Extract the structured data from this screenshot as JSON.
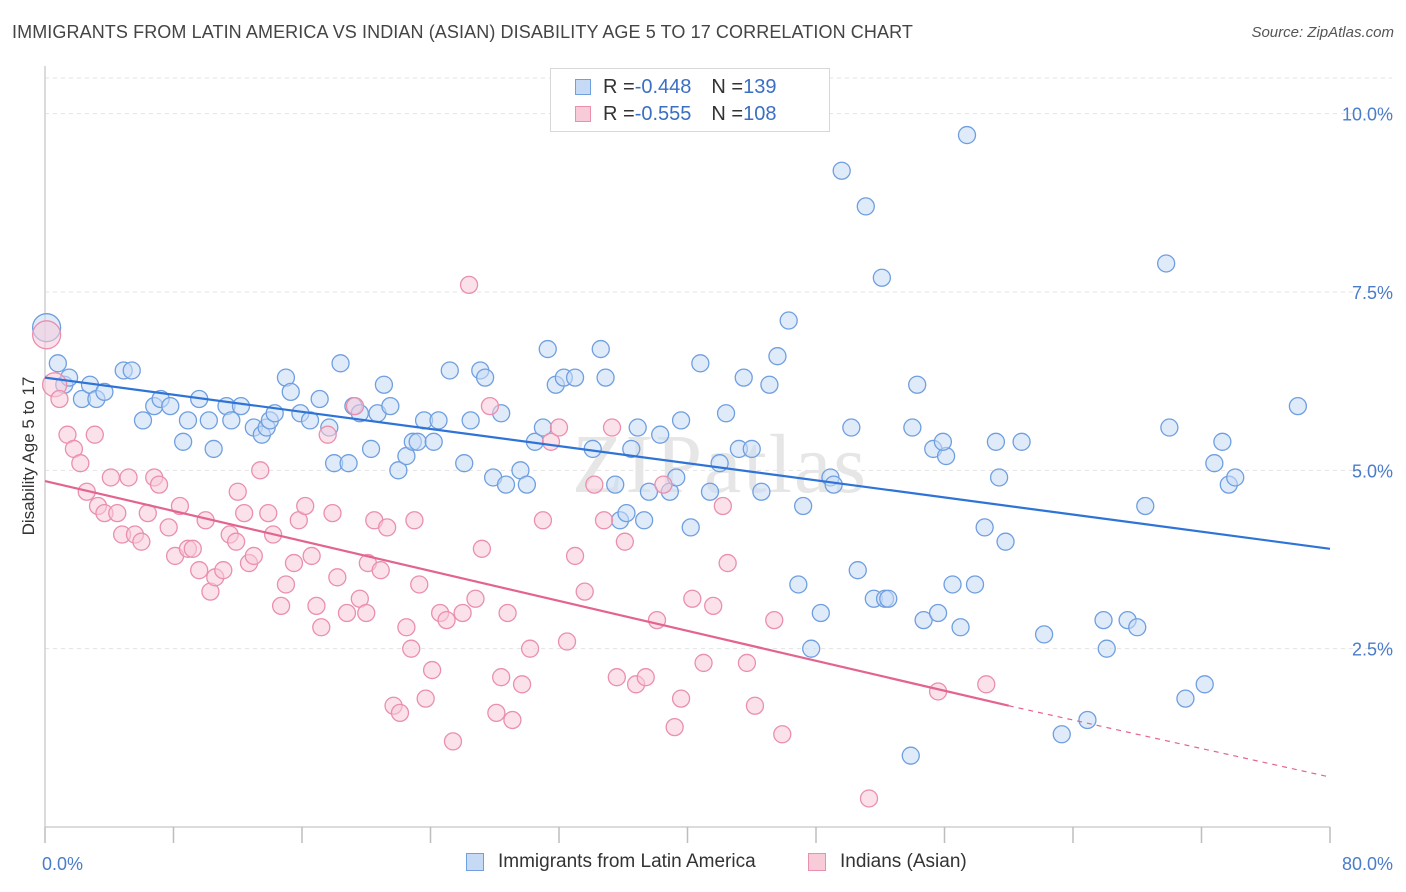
{
  "title": "IMMIGRANTS FROM LATIN AMERICA VS INDIAN (ASIAN) DISABILITY AGE 5 TO 17 CORRELATION CHART",
  "source": "Source: ZipAtlas.com",
  "watermark": "ZIPatlas",
  "colors": {
    "blue": "#6f9fe0",
    "blue_fill": "#c7daf5",
    "blue_line": "#2e74d6",
    "pink": "#ea8fae",
    "pink_fill": "#f8cbd9",
    "pink_line": "#e2648f",
    "tick_text": "#4a7cc9",
    "grid": "#e3e3e3"
  },
  "legend": {
    "rows": [
      {
        "r_label": "R = ",
        "r_value": "-0.448",
        "n_label": "N = ",
        "n_value": "139"
      },
      {
        "r_label": "R = ",
        "r_value": "-0.555",
        "n_label": "N = ",
        "n_value": "108"
      }
    ]
  },
  "chart_data": {
    "type": "scatter",
    "title": "IMMIGRANTS FROM LATIN AMERICA VS INDIAN (ASIAN) DISABILITY AGE 5 TO 17 CORRELATION CHART",
    "xlabel": "",
    "ylabel": "Disability Age 5 to 17",
    "xlim": [
      0,
      80
    ],
    "ylim": [
      0,
      10.5
    ],
    "x_tick_labels": [
      "0.0%",
      "80.0%"
    ],
    "y_ticks": [
      2.5,
      5.0,
      7.5,
      10.0
    ],
    "y_tick_labels": [
      "2.5%",
      "5.0%",
      "7.5%",
      "10.0%"
    ],
    "grid": true,
    "legend_position": "top-center",
    "series": [
      {
        "name": "Immigrants from Latin America",
        "color": "#6f9fe0",
        "R": -0.448,
        "N": 139,
        "trend": {
          "x": [
            0,
            80
          ],
          "y": [
            6.3,
            3.9
          ]
        },
        "points": [
          [
            0.1,
            7.0
          ],
          [
            0.8,
            6.5
          ],
          [
            1.2,
            6.2
          ],
          [
            1.5,
            6.3
          ],
          [
            2.3,
            6.0
          ],
          [
            2.8,
            6.2
          ],
          [
            3.2,
            6.0
          ],
          [
            3.7,
            6.1
          ],
          [
            4.9,
            6.4
          ],
          [
            5.4,
            6.4
          ],
          [
            6.1,
            5.7
          ],
          [
            6.8,
            5.9
          ],
          [
            7.2,
            6.0
          ],
          [
            7.8,
            5.9
          ],
          [
            8.6,
            5.4
          ],
          [
            8.9,
            5.7
          ],
          [
            9.6,
            6.0
          ],
          [
            10.2,
            5.7
          ],
          [
            10.5,
            5.3
          ],
          [
            11.3,
            5.9
          ],
          [
            11.6,
            5.7
          ],
          [
            12.2,
            5.9
          ],
          [
            13.0,
            5.6
          ],
          [
            13.5,
            5.5
          ],
          [
            13.8,
            5.6
          ],
          [
            14.0,
            5.7
          ],
          [
            14.3,
            5.8
          ],
          [
            15.0,
            6.3
          ],
          [
            15.3,
            6.1
          ],
          [
            15.9,
            5.8
          ],
          [
            16.5,
            5.7
          ],
          [
            17.1,
            6.0
          ],
          [
            17.7,
            5.6
          ],
          [
            18.0,
            5.1
          ],
          [
            18.4,
            6.5
          ],
          [
            18.9,
            5.1
          ],
          [
            19.2,
            5.9
          ],
          [
            19.6,
            5.8
          ],
          [
            20.3,
            5.3
          ],
          [
            20.7,
            5.8
          ],
          [
            21.1,
            6.2
          ],
          [
            21.5,
            5.9
          ],
          [
            22.0,
            5.0
          ],
          [
            22.5,
            5.2
          ],
          [
            22.9,
            5.4
          ],
          [
            23.2,
            5.4
          ],
          [
            23.6,
            5.7
          ],
          [
            24.2,
            5.4
          ],
          [
            24.5,
            5.7
          ],
          [
            25.2,
            6.4
          ],
          [
            26.1,
            5.1
          ],
          [
            26.5,
            5.7
          ],
          [
            27.1,
            6.4
          ],
          [
            27.4,
            6.3
          ],
          [
            27.9,
            4.9
          ],
          [
            28.4,
            5.8
          ],
          [
            28.7,
            4.8
          ],
          [
            29.6,
            5.0
          ],
          [
            30.0,
            4.8
          ],
          [
            30.5,
            5.4
          ],
          [
            31.0,
            5.6
          ],
          [
            31.3,
            6.7
          ],
          [
            31.8,
            6.2
          ],
          [
            32.3,
            6.3
          ],
          [
            33.0,
            6.3
          ],
          [
            34.1,
            5.3
          ],
          [
            34.6,
            6.7
          ],
          [
            34.9,
            6.3
          ],
          [
            35.5,
            4.8
          ],
          [
            35.8,
            4.3
          ],
          [
            36.2,
            4.4
          ],
          [
            36.5,
            5.3
          ],
          [
            36.9,
            5.6
          ],
          [
            37.3,
            4.3
          ],
          [
            37.6,
            4.7
          ],
          [
            38.3,
            5.5
          ],
          [
            38.9,
            4.7
          ],
          [
            39.3,
            4.9
          ],
          [
            39.6,
            5.7
          ],
          [
            40.2,
            4.2
          ],
          [
            40.8,
            6.5
          ],
          [
            41.4,
            4.7
          ],
          [
            42.0,
            5.1
          ],
          [
            42.4,
            5.8
          ],
          [
            43.2,
            5.3
          ],
          [
            43.5,
            6.3
          ],
          [
            44.0,
            5.3
          ],
          [
            44.6,
            4.7
          ],
          [
            45.1,
            6.2
          ],
          [
            45.6,
            6.6
          ],
          [
            46.3,
            7.1
          ],
          [
            46.9,
            3.4
          ],
          [
            47.2,
            4.5
          ],
          [
            47.7,
            2.5
          ],
          [
            48.3,
            3.0
          ],
          [
            48.9,
            4.9
          ],
          [
            49.1,
            4.8
          ],
          [
            49.6,
            9.2
          ],
          [
            50.2,
            5.6
          ],
          [
            50.6,
            3.6
          ],
          [
            51.1,
            8.7
          ],
          [
            51.6,
            3.2
          ],
          [
            52.1,
            7.7
          ],
          [
            52.3,
            3.2
          ],
          [
            52.5,
            3.2
          ],
          [
            54.0,
            5.6
          ],
          [
            54.3,
            6.2
          ],
          [
            54.7,
            2.9
          ],
          [
            55.3,
            5.3
          ],
          [
            55.6,
            3.0
          ],
          [
            56.1,
            5.2
          ],
          [
            56.5,
            3.4
          ],
          [
            57.0,
            2.8
          ],
          [
            57.4,
            9.7
          ],
          [
            57.9,
            3.4
          ],
          [
            58.5,
            4.2
          ],
          [
            59.2,
            5.4
          ],
          [
            59.4,
            4.9
          ],
          [
            59.8,
            4.0
          ],
          [
            60.8,
            5.4
          ],
          [
            62.2,
            2.7
          ],
          [
            63.3,
            1.3
          ],
          [
            64.9,
            1.5
          ],
          [
            65.9,
            2.9
          ],
          [
            66.1,
            2.5
          ],
          [
            67.4,
            2.9
          ],
          [
            68.0,
            2.8
          ],
          [
            68.5,
            4.5
          ],
          [
            70.0,
            5.6
          ],
          [
            69.8,
            7.9
          ],
          [
            71.0,
            1.8
          ],
          [
            72.2,
            2.0
          ],
          [
            72.8,
            5.1
          ],
          [
            73.3,
            5.4
          ],
          [
            73.7,
            4.8
          ],
          [
            74.1,
            4.9
          ],
          [
            78.0,
            5.9
          ],
          [
            55.9,
            5.4
          ],
          [
            53.9,
            1.0
          ]
        ]
      },
      {
        "name": "Indians (Asian)",
        "color": "#ea8fae",
        "R": -0.555,
        "N": 108,
        "trend": {
          "x": [
            0,
            60
          ],
          "y": [
            4.85,
            1.7
          ]
        },
        "trend_dashed": {
          "x": [
            60,
            80
          ],
          "y": [
            1.7,
            0.7
          ]
        },
        "points": [
          [
            0.1,
            6.9
          ],
          [
            0.6,
            6.2
          ],
          [
            0.9,
            6.0
          ],
          [
            1.4,
            5.5
          ],
          [
            1.8,
            5.3
          ],
          [
            2.2,
            5.1
          ],
          [
            2.6,
            4.7
          ],
          [
            3.1,
            5.5
          ],
          [
            3.3,
            4.5
          ],
          [
            3.7,
            4.4
          ],
          [
            4.1,
            4.9
          ],
          [
            4.5,
            4.4
          ],
          [
            4.8,
            4.1
          ],
          [
            5.2,
            4.9
          ],
          [
            5.6,
            4.1
          ],
          [
            6.0,
            4.0
          ],
          [
            6.4,
            4.4
          ],
          [
            6.8,
            4.9
          ],
          [
            7.1,
            4.8
          ],
          [
            7.7,
            4.2
          ],
          [
            8.1,
            3.8
          ],
          [
            8.4,
            4.5
          ],
          [
            8.9,
            3.9
          ],
          [
            9.2,
            3.9
          ],
          [
            9.6,
            3.6
          ],
          [
            10.0,
            4.3
          ],
          [
            10.3,
            3.3
          ],
          [
            10.6,
            3.5
          ],
          [
            11.1,
            3.6
          ],
          [
            11.5,
            4.1
          ],
          [
            11.9,
            4.0
          ],
          [
            12.4,
            4.4
          ],
          [
            12.7,
            3.7
          ],
          [
            13.0,
            3.8
          ],
          [
            13.4,
            5.0
          ],
          [
            13.9,
            4.4
          ],
          [
            14.2,
            4.1
          ],
          [
            14.7,
            3.1
          ],
          [
            15.0,
            3.4
          ],
          [
            15.5,
            3.7
          ],
          [
            15.8,
            4.3
          ],
          [
            16.2,
            4.5
          ],
          [
            16.6,
            3.8
          ],
          [
            17.2,
            2.8
          ],
          [
            17.6,
            5.5
          ],
          [
            17.9,
            4.4
          ],
          [
            18.2,
            3.5
          ],
          [
            18.8,
            3.0
          ],
          [
            19.3,
            5.9
          ],
          [
            19.6,
            3.2
          ],
          [
            20.1,
            3.7
          ],
          [
            20.5,
            4.3
          ],
          [
            20.9,
            3.6
          ],
          [
            21.3,
            4.2
          ],
          [
            21.7,
            1.7
          ],
          [
            22.1,
            1.6
          ],
          [
            22.5,
            2.8
          ],
          [
            22.8,
            2.5
          ],
          [
            23.3,
            3.4
          ],
          [
            23.7,
            1.8
          ],
          [
            24.1,
            2.2
          ],
          [
            24.6,
            3.0
          ],
          [
            25.0,
            2.9
          ],
          [
            25.4,
            1.2
          ],
          [
            26.0,
            3.0
          ],
          [
            26.4,
            7.6
          ],
          [
            26.8,
            3.2
          ],
          [
            27.2,
            3.9
          ],
          [
            27.7,
            5.9
          ],
          [
            28.1,
            1.6
          ],
          [
            28.4,
            2.1
          ],
          [
            28.8,
            3.0
          ],
          [
            29.1,
            1.5
          ],
          [
            29.7,
            2.0
          ],
          [
            30.2,
            2.5
          ],
          [
            31.0,
            4.3
          ],
          [
            31.5,
            5.4
          ],
          [
            32.0,
            5.6
          ],
          [
            32.5,
            2.6
          ],
          [
            33.0,
            3.8
          ],
          [
            33.6,
            3.3
          ],
          [
            34.2,
            4.8
          ],
          [
            34.8,
            4.3
          ],
          [
            35.3,
            5.6
          ],
          [
            35.6,
            2.1
          ],
          [
            36.1,
            4.0
          ],
          [
            36.8,
            2.0
          ],
          [
            37.4,
            2.1
          ],
          [
            38.1,
            2.9
          ],
          [
            38.5,
            4.8
          ],
          [
            39.2,
            1.4
          ],
          [
            39.6,
            1.8
          ],
          [
            40.3,
            3.2
          ],
          [
            41.0,
            2.3
          ],
          [
            41.6,
            3.1
          ],
          [
            42.2,
            4.5
          ],
          [
            42.5,
            3.7
          ],
          [
            43.7,
            2.3
          ],
          [
            44.2,
            1.7
          ],
          [
            45.4,
            2.9
          ],
          [
            45.9,
            1.3
          ],
          [
            51.3,
            0.4
          ],
          [
            55.6,
            1.9
          ],
          [
            58.6,
            2.0
          ],
          [
            12.0,
            4.7
          ],
          [
            16.9,
            3.1
          ],
          [
            20.0,
            3.0
          ],
          [
            23.0,
            4.3
          ]
        ]
      }
    ]
  },
  "bottom_legend": [
    {
      "label": "Immigrants from Latin America"
    },
    {
      "label": "Indians (Asian)"
    }
  ]
}
